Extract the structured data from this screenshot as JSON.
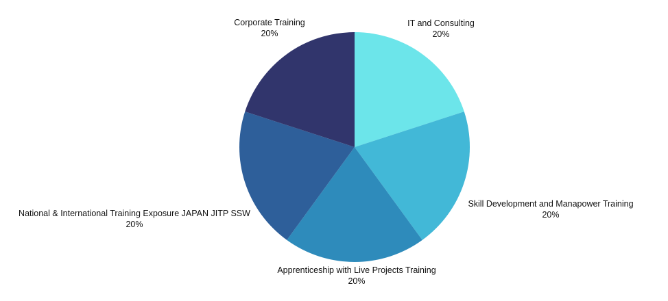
{
  "chart_data": {
    "type": "pie",
    "title": "",
    "legend": "none",
    "categories": [
      "IT and Consulting",
      "Skill Development and Manapower Training",
      "Apprenticeship with Live Projects Training",
      "National & International Training Exposure JAPAN JITP SSW",
      "Corporate Training"
    ],
    "values": [
      20,
      20,
      20,
      20,
      20
    ],
    "value_labels": [
      "20%",
      "20%",
      "20%",
      "20%",
      "20%"
    ],
    "colors": [
      "#6ce5ea",
      "#42b8d7",
      "#2e8bbb",
      "#2e5f9a",
      "#31356c"
    ]
  }
}
